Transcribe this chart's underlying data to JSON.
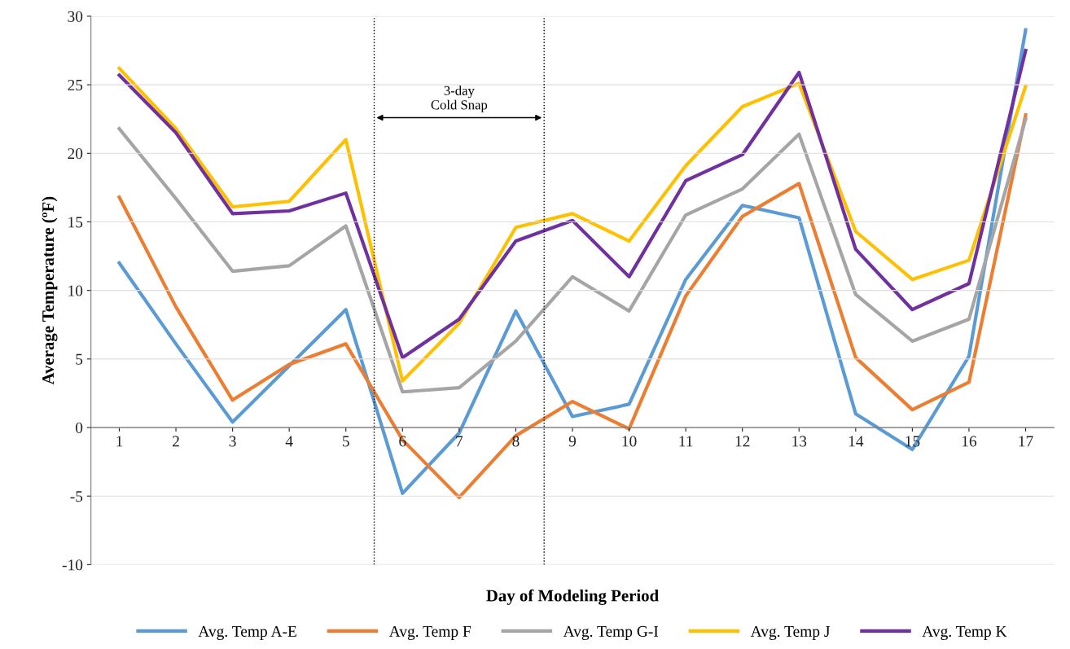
{
  "chart_data": {
    "type": "line",
    "xlabel": "Day of Modeling Period",
    "ylabel": "Average Temperature (ºF)",
    "x": [
      1,
      2,
      3,
      4,
      5,
      6,
      7,
      8,
      9,
      10,
      11,
      12,
      13,
      14,
      15,
      16,
      17
    ],
    "xlim": [
      0.5,
      17.5
    ],
    "xticks": [
      1,
      2,
      3,
      4,
      5,
      6,
      7,
      8,
      9,
      10,
      11,
      12,
      13,
      14,
      15,
      16,
      17
    ],
    "ylim": [
      -10,
      30
    ],
    "yticks": [
      -10,
      -5,
      0,
      5,
      10,
      15,
      20,
      25,
      30
    ],
    "grid": "y",
    "legend": "bottom",
    "marker": "none",
    "line_style": "solid",
    "series": [
      {
        "name": "Avg. Temp A-E",
        "color": "#5b9bd5",
        "values": [
          12.0,
          6.1,
          0.4,
          4.5,
          8.6,
          -4.8,
          -0.4,
          8.5,
          0.8,
          1.7,
          10.8,
          16.2,
          15.3,
          1.0,
          -1.6,
          5.2,
          29.0
        ]
      },
      {
        "name": "Avg. Temp F",
        "color": "#ed7d31",
        "values": [
          16.8,
          8.8,
          2.0,
          4.6,
          6.1,
          -0.9,
          -5.1,
          -0.6,
          1.9,
          -0.1,
          9.6,
          15.4,
          17.8,
          5.1,
          1.3,
          3.3,
          22.8
        ]
      },
      {
        "name": "Avg. Temp G-I",
        "color": "#a5a5a5",
        "values": [
          21.8,
          16.7,
          11.4,
          11.8,
          14.7,
          2.6,
          2.9,
          6.3,
          11.0,
          8.5,
          15.5,
          17.4,
          21.4,
          9.7,
          6.3,
          7.9,
          22.5
        ]
      },
      {
        "name": "Avg. Temp J",
        "color": "#ffc000",
        "values": [
          26.2,
          21.8,
          16.1,
          16.5,
          21.0,
          3.4,
          7.6,
          14.6,
          15.6,
          13.6,
          19.1,
          23.4,
          25.1,
          14.3,
          10.8,
          12.2,
          24.9
        ]
      },
      {
        "name": "Avg. Temp K",
        "color": "#7030a0",
        "values": [
          25.7,
          21.5,
          15.6,
          15.8,
          17.1,
          5.1,
          7.9,
          13.6,
          15.1,
          11.0,
          18.0,
          19.9,
          25.9,
          13.0,
          8.6,
          10.5,
          27.5
        ]
      }
    ],
    "ref_lines": [
      {
        "axis": "x",
        "value": 5.5,
        "color": "#000000",
        "line_style": "dotted"
      },
      {
        "axis": "x",
        "value": 8.5,
        "color": "#000000",
        "line_style": "dotted"
      }
    ],
    "annotations": [
      "3-day\nCold Snap"
    ]
  }
}
